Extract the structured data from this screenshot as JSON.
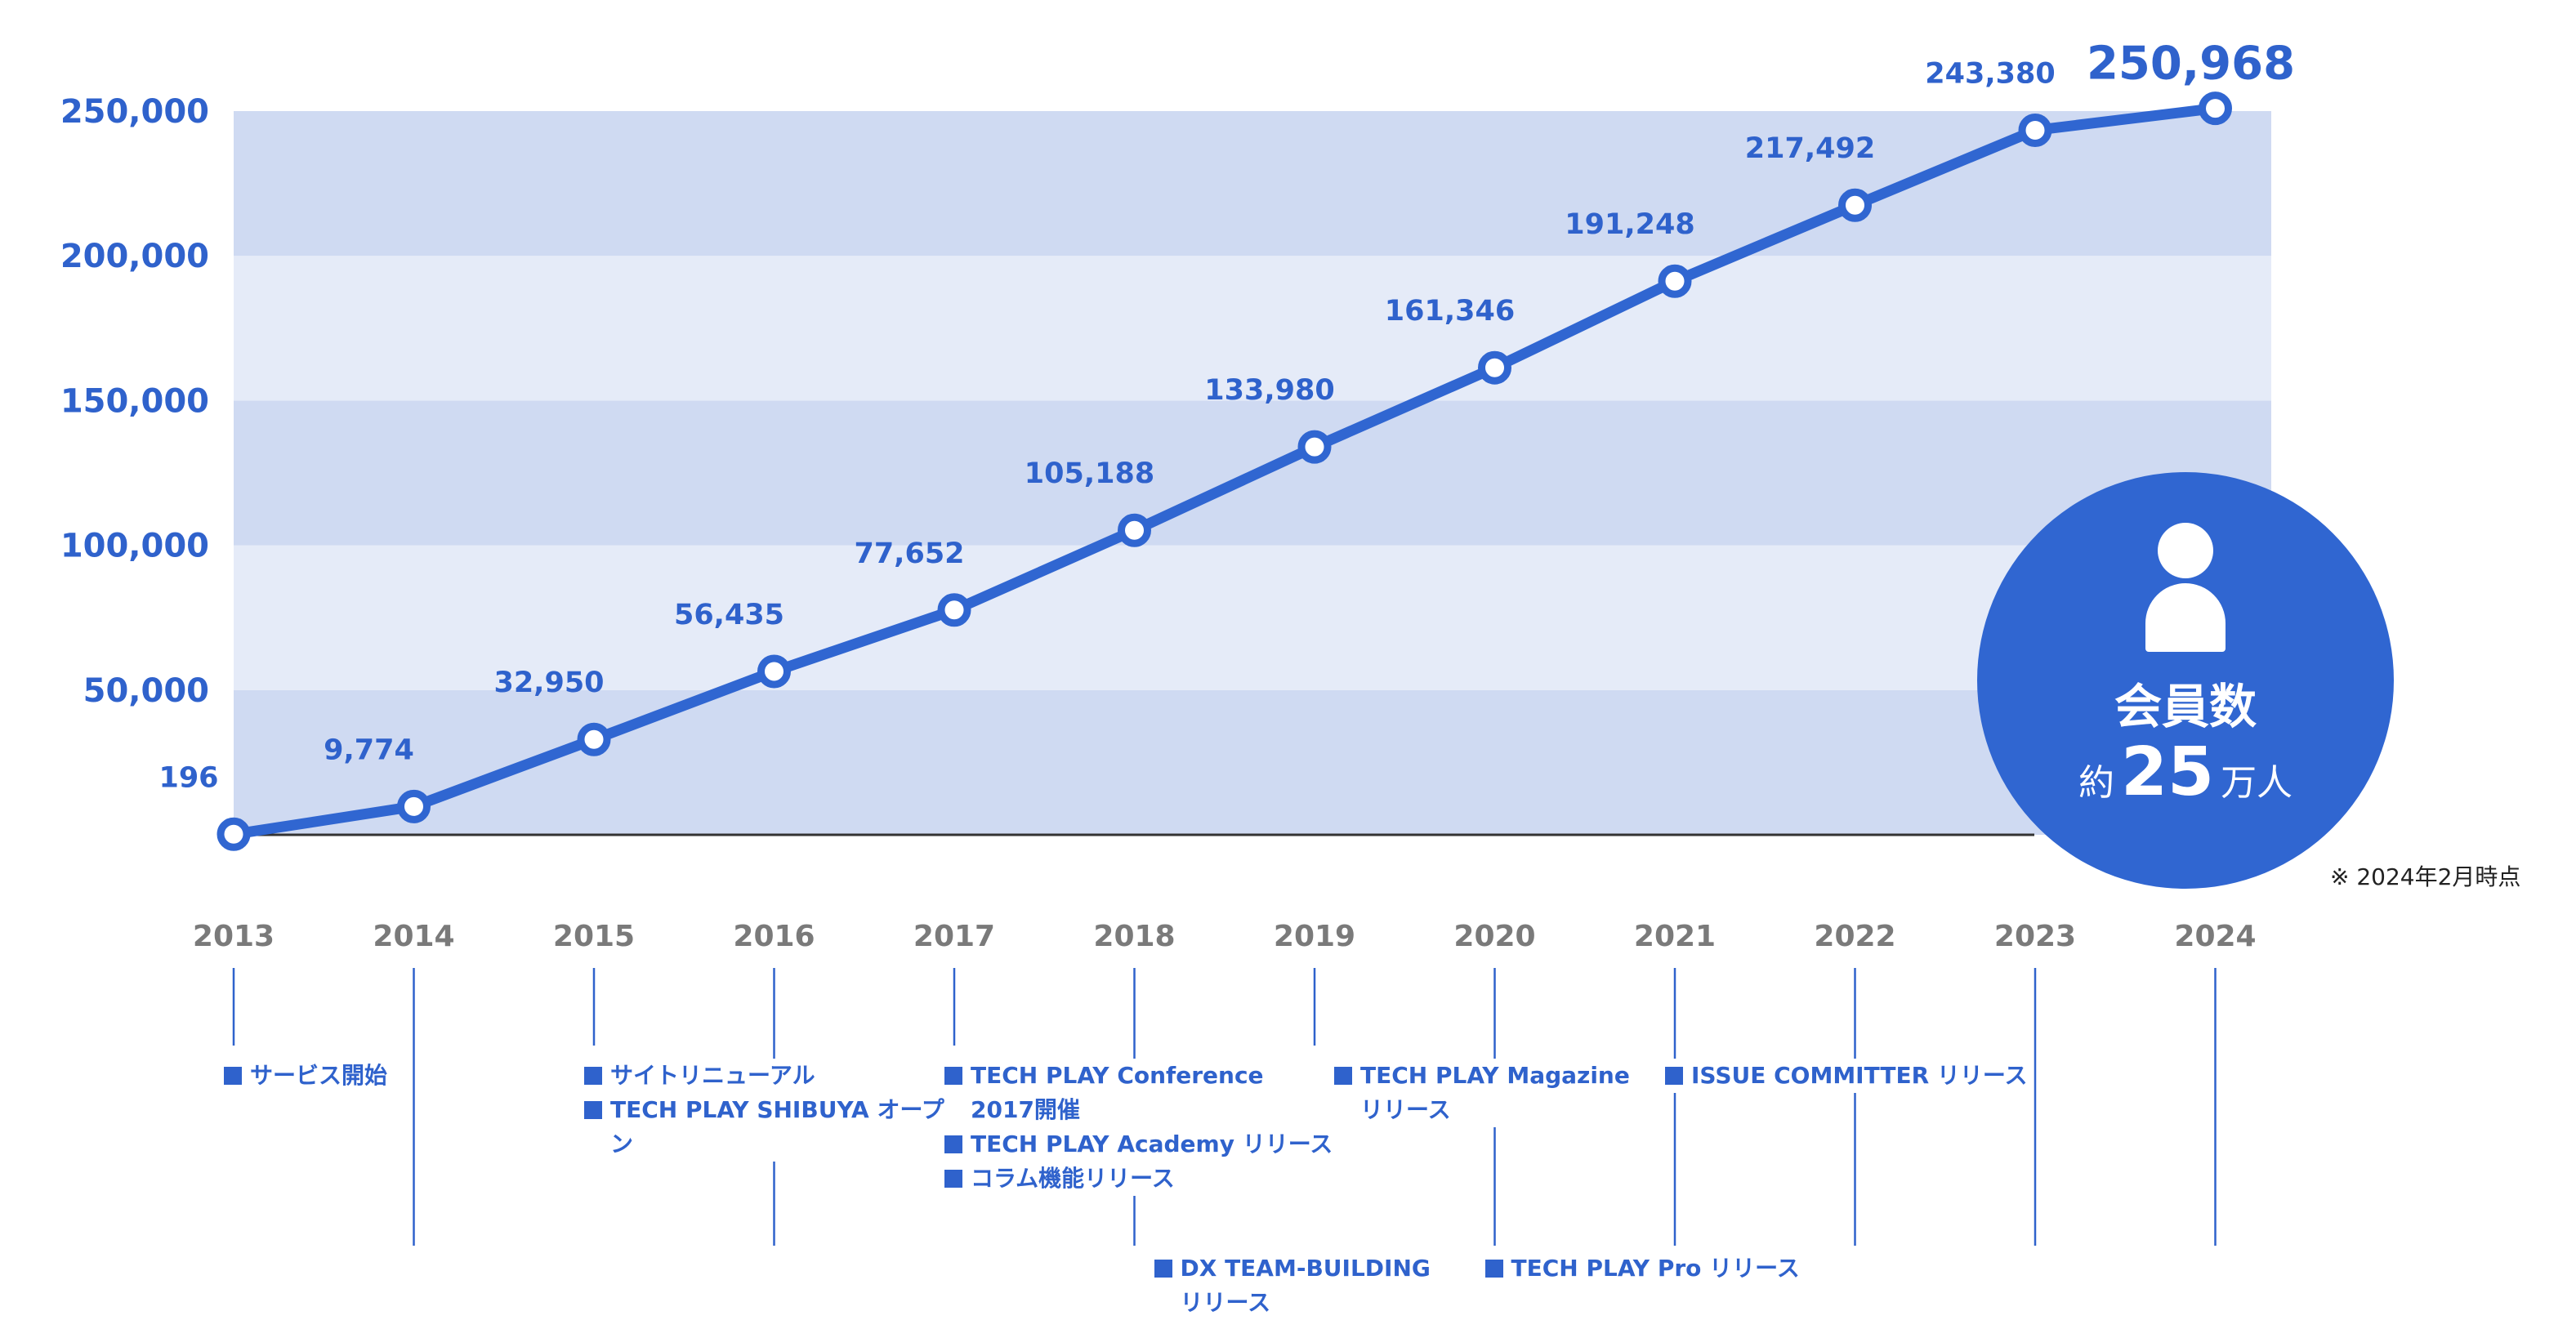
{
  "chart_data": {
    "type": "line",
    "title": "",
    "xlabel": "",
    "ylabel": "",
    "categories": [
      "2013",
      "2014",
      "2015",
      "2016",
      "2017",
      "2018",
      "2019",
      "2020",
      "2021",
      "2022",
      "2023",
      "2024"
    ],
    "series": [
      {
        "values": [
          196,
          9774,
          32950,
          56435,
          77652,
          105188,
          133980,
          161346,
          191248,
          217492,
          243380,
          250968
        ]
      }
    ],
    "data_labels": [
      "196",
      "9,774",
      "32,950",
      "56,435",
      "77,652",
      "105,188",
      "133,980",
      "161,346",
      "191,248",
      "217,492",
      "243,380",
      "250,968"
    ],
    "y_ticks": [
      50000,
      100000,
      150000,
      200000,
      250000
    ],
    "y_tick_labels": [
      "50,000",
      "100,000",
      "150,000",
      "200,000",
      "250,000"
    ],
    "ylim": [
      0,
      250000
    ],
    "colors": {
      "line": "#3066d1",
      "band_dark": "#cfdaf2",
      "band_light": "#e5ebf8",
      "label": "#2f62cc",
      "year": "#7a7a7a"
    }
  },
  "events": [
    {
      "year": "2013",
      "column": 0,
      "row": 0,
      "lines": [
        "サービス開始"
      ]
    },
    {
      "year": "2015",
      "column": 2,
      "row": 0,
      "lines": [
        "サイトリニューアル"
      ]
    },
    {
      "year": "2015",
      "column": 2,
      "row": 1,
      "lines": [
        "TECH PLAY SHIBUYA オープ",
        "ン"
      ]
    },
    {
      "year": "2017",
      "column": 4,
      "row": 0,
      "lines": [
        "TECH PLAY Conference",
        "2017開催"
      ]
    },
    {
      "year": "2017",
      "column": 4,
      "row": 2,
      "lines": [
        "TECH PLAY Academy リリース"
      ]
    },
    {
      "year": "2017",
      "column": 4,
      "row": 3,
      "lines": [
        "コラム機能リリース"
      ]
    },
    {
      "year": "2018",
      "column": 5,
      "row": 5,
      "lines": [
        "DX TEAM-BUILDING",
        "リリース"
      ]
    },
    {
      "year": "2019",
      "column": 6,
      "row": 0,
      "lines": [
        "TECH PLAY Magazine",
        "リリース"
      ]
    },
    {
      "year": "2020",
      "column": 7,
      "row": 5,
      "lines": [
        "TECH PLAY Pro リリース"
      ]
    },
    {
      "year": "2021",
      "column": 8,
      "row": 0,
      "lines": [
        "ISSUE COMMITTER リリース"
      ]
    }
  ],
  "badge": {
    "icon": "person-icon",
    "title": "会員数",
    "prefix": "約",
    "number": "25",
    "suffix": "万人"
  },
  "note": "※ 2024年2月時点"
}
